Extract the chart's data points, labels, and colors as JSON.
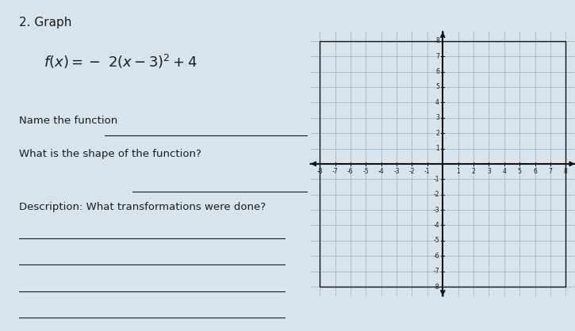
{
  "title": "2. Graph",
  "formula_text": "f(x) = - 2(x - 3)² + 4",
  "label_name_function": "Name the function",
  "label_shape": "What is the shape of the function?",
  "label_description": "Description: What transformations were done?",
  "bg_color": "#d8e4ed",
  "text_color": "#1a1a1a",
  "grid_color": "#999999",
  "axis_color": "#111111",
  "x_min": -8,
  "x_max": 8,
  "y_min": -8,
  "y_max": 8,
  "font_size_title": 11,
  "font_size_formula": 12,
  "font_size_labels": 9.5,
  "font_size_tick": 5.5
}
